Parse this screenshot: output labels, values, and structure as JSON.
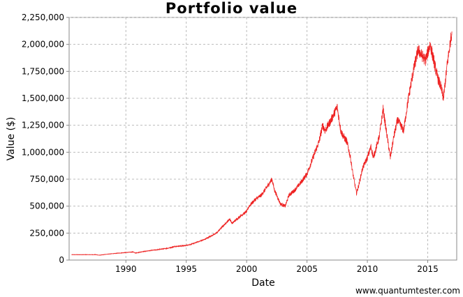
{
  "chart_data": {
    "type": "line",
    "title": "Portfolio value",
    "xlabel": "Date",
    "ylabel": "Value ($)",
    "xlim": [
      1985.3,
      2017.4
    ],
    "ylim": [
      0,
      2250000
    ],
    "grid": true,
    "x_ticks": [
      1990,
      1995,
      2000,
      2005,
      2010,
      2015
    ],
    "x_tick_labels": [
      "1990",
      "1995",
      "2000",
      "2005",
      "2010",
      "2015"
    ],
    "y_ticks": [
      0,
      250000,
      500000,
      750000,
      1000000,
      1250000,
      1500000,
      1750000,
      2000000,
      2250000
    ],
    "y_tick_labels": [
      "0",
      "250,000",
      "500,000",
      "750,000",
      "1,000,000",
      "1,250,000",
      "1,500,000",
      "1,750,000",
      "2,000,000",
      "2,250,000"
    ],
    "series": [
      {
        "name": "Portfolio value",
        "color": "#ee2222",
        "x": [
          1985.5,
          1986.5,
          1987.5,
          1987.8,
          1988.5,
          1989.5,
          1990.0,
          1990.6,
          1990.8,
          1991.5,
          1992.5,
          1993.5,
          1994.0,
          1994.5,
          1995.0,
          1995.5,
          1996.5,
          1997.5,
          1998.0,
          1998.6,
          1998.8,
          1999.5,
          2000.0,
          2000.2,
          2000.7,
          2001.2,
          2001.7,
          2002.1,
          2002.3,
          2002.8,
          2003.2,
          2003.5,
          2004.0,
          2004.5,
          2005.0,
          2005.5,
          2006.0,
          2006.3,
          2006.5,
          2007.0,
          2007.5,
          2007.8,
          2008.0,
          2008.3,
          2008.6,
          2008.8,
          2009.1,
          2009.3,
          2009.6,
          2010.0,
          2010.3,
          2010.5,
          2011.0,
          2011.3,
          2011.7,
          2011.9,
          2012.2,
          2012.5,
          2013.0,
          2013.4,
          2013.8,
          2014.2,
          2014.5,
          2014.8,
          2015.2,
          2015.5,
          2015.8,
          2016.1,
          2016.3,
          2016.6,
          2016.9,
          2017.0
        ],
        "y": [
          50000,
          50000,
          50000,
          45000,
          55000,
          65000,
          70000,
          75000,
          65000,
          80000,
          95000,
          110000,
          125000,
          130000,
          135000,
          150000,
          190000,
          250000,
          310000,
          380000,
          340000,
          410000,
          450000,
          500000,
          560000,
          600000,
          680000,
          750000,
          650000,
          520000,
          500000,
          600000,
          650000,
          720000,
          800000,
          950000,
          1100000,
          1250000,
          1200000,
          1300000,
          1420000,
          1200000,
          1150000,
          1100000,
          950000,
          800000,
          620000,
          700000,
          850000,
          950000,
          1050000,
          950000,
          1150000,
          1400000,
          1100000,
          950000,
          1150000,
          1300000,
          1200000,
          1500000,
          1750000,
          1950000,
          1900000,
          1850000,
          2000000,
          1850000,
          1700000,
          1600000,
          1500000,
          1800000,
          2050000,
          2120000
        ]
      }
    ]
  },
  "watermark": "www.quantumtester.com"
}
